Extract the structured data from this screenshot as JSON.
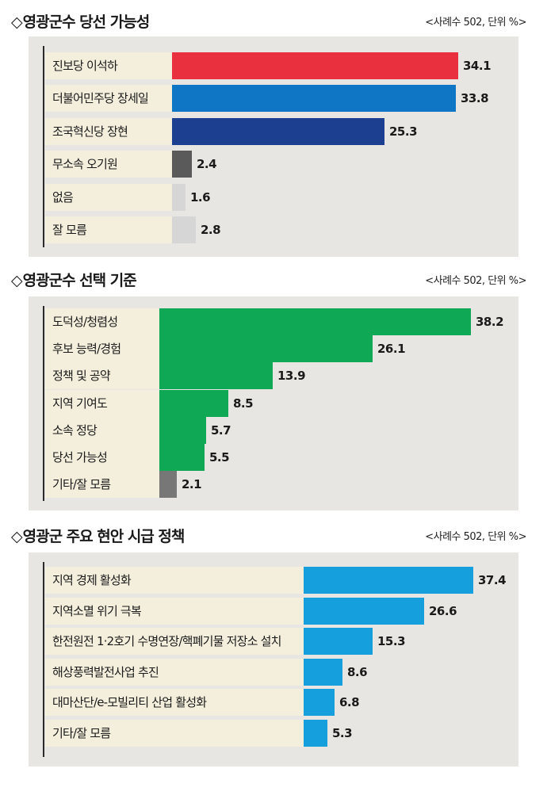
{
  "chart_data": [
    {
      "type": "bar",
      "title": "영광군수 당선 가능성",
      "note": "<사례수 502, 단위 %>",
      "categories": [
        "진보당 이석하",
        "더불어민주당 장세일",
        "조국혁신당 장현",
        "무소속 오기원",
        "없음",
        "잘 모름"
      ],
      "values": [
        34.1,
        33.8,
        25.3,
        2.4,
        1.6,
        2.8
      ],
      "value_labels": [
        "34.1",
        "33.8",
        "25.3",
        "2.4",
        "1.6",
        "2.8"
      ],
      "colors": [
        "#e8303e",
        "#0e76c4",
        "#1d3f8f",
        "#5a5a5a",
        "#d6d6d6",
        "#d6d6d6"
      ],
      "xlim": [
        0,
        35.3
      ]
    },
    {
      "type": "bar",
      "title": "영광군수 선택 기준",
      "note": "<사례수 502, 단위 %>",
      "categories": [
        "도덕성/청렴성",
        "후보 능력/경험",
        "정책 및 공약",
        "지역 기여도",
        "소속 정당",
        "당선 가능성",
        "기타/잘 모름"
      ],
      "values": [
        38.2,
        26.1,
        13.9,
        8.5,
        5.7,
        5.5,
        2.1
      ],
      "value_labels": [
        "38.2",
        "26.1",
        "13.9",
        "8.5",
        "5.7",
        "5.5",
        "2.1"
      ],
      "colors": [
        "#0fa955",
        "#0fa955",
        "#0fa955",
        "#0fa955",
        "#0fa955",
        "#0fa955",
        "#777777"
      ],
      "xlim": [
        0,
        38.2
      ]
    },
    {
      "type": "bar",
      "title": "영광군 주요 현안 시급 정책",
      "note": "<사례수 502, 단위 %>",
      "categories": [
        "지역 경제 활성화",
        "지역소멸 위기 극복",
        "한전원전 1·2호기 수명연장/핵폐기물 저장소 설치",
        "해상풍력발전사업 추진",
        "대마산단/e-모빌리티 산업 활성화",
        "기타/잘 모름"
      ],
      "values": [
        37.4,
        26.6,
        15.3,
        8.6,
        6.8,
        5.3
      ],
      "value_labels": [
        "37.4",
        "26.6",
        "15.3",
        "8.6",
        "6.8",
        "5.3"
      ],
      "colors": [
        "#159fdc",
        "#159fdc",
        "#159fdc",
        "#159fdc",
        "#159fdc",
        "#159fdc"
      ],
      "xlim": [
        0,
        39.9
      ]
    }
  ]
}
